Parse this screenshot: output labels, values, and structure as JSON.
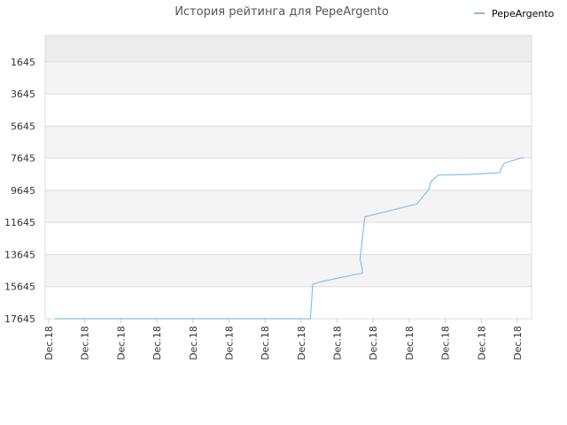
{
  "chart_data": {
    "type": "line",
    "title": "История рейтинга для PepeArgento",
    "xlabel": "",
    "ylabel": "",
    "y_inverted": true,
    "ylim": [
      17645,
      0
    ],
    "yticks": [
      1645,
      3645,
      5645,
      7645,
      9645,
      11645,
      13645,
      15645,
      17645
    ],
    "xticks": [
      "Dec.18",
      "Dec.18",
      "Dec.18",
      "Dec.18",
      "Dec.18",
      "Dec.18",
      "Dec.18",
      "Dec.18",
      "Dec.18",
      "Dec.18",
      "Dec.18",
      "Dec.18",
      "Dec.18",
      "Dec.18"
    ],
    "legend_position": "top-right",
    "grid": true,
    "colors": {
      "series": "#87bfe8",
      "band_dark": "#ececec",
      "band_light": "#f4f4f4",
      "band_white": "#ffffff",
      "grid": "#dddddd"
    },
    "series": [
      {
        "name": "PepeArgento",
        "x": [
          0.0,
          0.02,
          0.54,
          0.545,
          0.56,
          0.65,
          0.65,
          0.645,
          0.655,
          0.765,
          0.79,
          0.795,
          0.81,
          0.88,
          0.94,
          0.945,
          0.95,
          0.99
        ],
        "values": [
          17645,
          17645,
          17645,
          15500,
          15350,
          14800,
          14600,
          13930,
          11300,
          10500,
          9600,
          9100,
          8700,
          8650,
          8550,
          8200,
          7950,
          7600
        ]
      }
    ]
  }
}
